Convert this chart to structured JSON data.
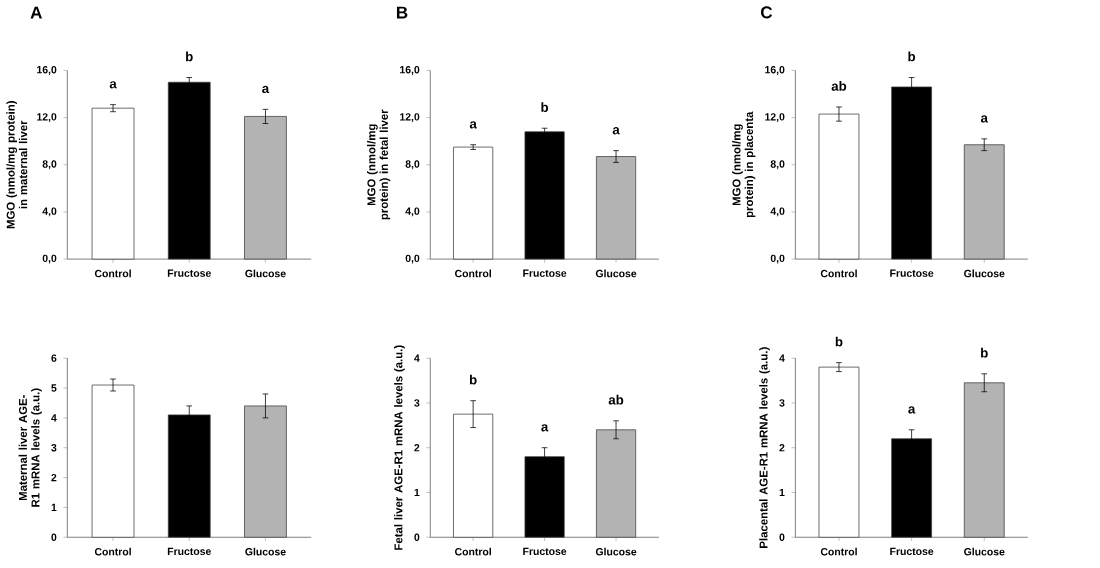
{
  "chart_data": [
    {
      "type": "bar",
      "title": "A",
      "ylabel": "MGO (nmol/mg protein) in maternal liver",
      "categories": [
        "Control",
        "Fructose",
        "Glucose"
      ],
      "values": [
        12.8,
        15.0,
        12.1
      ],
      "errors": [
        0.3,
        0.4,
        0.6
      ],
      "colors": [
        "#ffffff",
        "#000000",
        "#b3b3b3"
      ],
      "ylim": [
        0,
        16
      ],
      "yticks": [
        {
          "value": 0,
          "label": "0,0"
        },
        {
          "value": 4,
          "label": "4,0"
        },
        {
          "value": 8,
          "label": "8,0"
        },
        {
          "value": 12,
          "label": "12,0"
        },
        {
          "value": 16,
          "label": "16,0"
        }
      ],
      "annotations": [
        "a",
        "b",
        "a"
      ]
    },
    {
      "type": "bar",
      "title": "B",
      "ylabel": "MGO (nmol/mg protein) in fetal liver",
      "categories": [
        "Control",
        "Fructose",
        "Glucose"
      ],
      "values": [
        9.5,
        10.8,
        8.7
      ],
      "errors": [
        0.2,
        0.3,
        0.5
      ],
      "colors": [
        "#ffffff",
        "#000000",
        "#b3b3b3"
      ],
      "ylim": [
        0,
        16
      ],
      "yticks": [
        {
          "value": 0,
          "label": "0,0"
        },
        {
          "value": 4,
          "label": "4,0"
        },
        {
          "value": 8,
          "label": "8,0"
        },
        {
          "value": 12,
          "label": "12,0"
        },
        {
          "value": 16,
          "label": "16,0"
        }
      ],
      "annotations": [
        "a",
        "b",
        "a"
      ]
    },
    {
      "type": "bar",
      "title": "C",
      "ylabel": "MGO (nmol/mg protein) in placenta",
      "categories": [
        "Control",
        "Fructose",
        "Glucose"
      ],
      "values": [
        12.3,
        14.6,
        9.7
      ],
      "errors": [
        0.6,
        0.8,
        0.5
      ],
      "colors": [
        "#ffffff",
        "#000000",
        "#b3b3b3"
      ],
      "ylim": [
        0,
        16
      ],
      "yticks": [
        {
          "value": 0,
          "label": "0,0"
        },
        {
          "value": 4,
          "label": "4,0"
        },
        {
          "value": 8,
          "label": "8,0"
        },
        {
          "value": 12,
          "label": "12,0"
        },
        {
          "value": 16,
          "label": "16,0"
        }
      ],
      "annotations": [
        "ab",
        "b",
        "a"
      ]
    },
    {
      "type": "bar",
      "ylabel": "Maternal liver AGE-R1 mRNA levels (a.u.)",
      "categories": [
        "Control",
        "Fructose",
        "Glucose"
      ],
      "values": [
        5.1,
        4.1,
        4.4
      ],
      "errors": [
        0.2,
        0.3,
        0.4
      ],
      "colors": [
        "#ffffff",
        "#000000",
        "#b3b3b3"
      ],
      "ylim": [
        0,
        6
      ],
      "yticks": [
        0,
        1,
        2,
        3,
        4,
        5,
        6
      ]
    },
    {
      "type": "bar",
      "ylabel": "Fetal liver AGE-R1 mRNA levels (a.u.)",
      "categories": [
        "Control",
        "Fructose",
        "Glucose"
      ],
      "values": [
        2.75,
        1.8,
        2.4
      ],
      "errors": [
        0.3,
        0.2,
        0.2
      ],
      "colors": [
        "#ffffff",
        "#000000",
        "#b3b3b3"
      ],
      "ylim": [
        0,
        4
      ],
      "yticks": [
        0,
        1,
        2,
        3,
        4
      ],
      "annotations": [
        "b",
        "a",
        "ab"
      ]
    },
    {
      "type": "bar",
      "ylabel": "Placental AGE-R1 mRNA levels (a.u.)",
      "categories": [
        "Control",
        "Fructose",
        "Glucose"
      ],
      "values": [
        3.8,
        2.2,
        3.45
      ],
      "errors": [
        0.1,
        0.2,
        0.2
      ],
      "colors": [
        "#ffffff",
        "#000000",
        "#b3b3b3"
      ],
      "ylim": [
        0,
        4
      ],
      "yticks": [
        0,
        1,
        2,
        3,
        4
      ],
      "annotations": [
        "b",
        "a",
        "b"
      ]
    }
  ]
}
